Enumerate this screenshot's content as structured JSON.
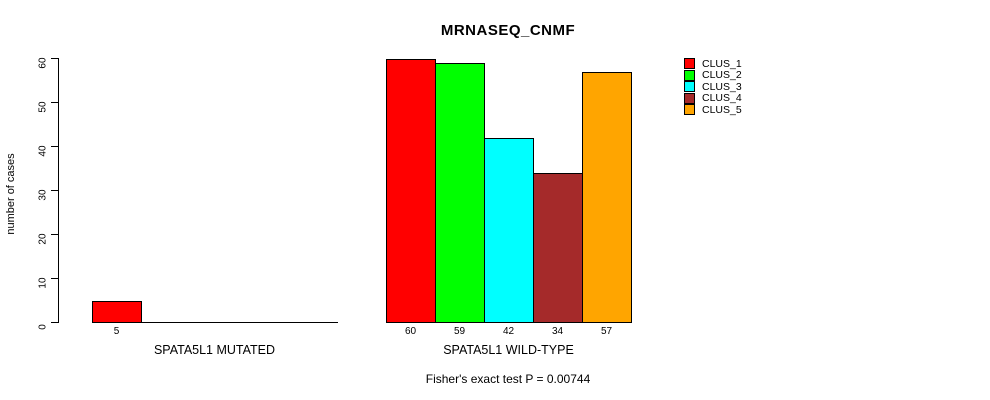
{
  "chart_data": {
    "type": "bar",
    "title": "MRNASEQ_CNMF",
    "ylabel": "number of cases",
    "ylim": [
      0,
      60
    ],
    "yticks": [
      0,
      10,
      20,
      30,
      40,
      50,
      60
    ],
    "grid": false,
    "legend_position": "right",
    "categories": [
      "SPATA5L1 MUTATED",
      "SPATA5L1 WILD-TYPE"
    ],
    "series": [
      {
        "name": "CLUS_1",
        "color": "#ff0000",
        "values": [
          5,
          60
        ]
      },
      {
        "name": "CLUS_2",
        "color": "#00ff00",
        "values": [
          0,
          59
        ]
      },
      {
        "name": "CLUS_3",
        "color": "#00ffff",
        "values": [
          0,
          42
        ]
      },
      {
        "name": "CLUS_4",
        "color": "#a52a2a",
        "values": [
          0,
          34
        ]
      },
      {
        "name": "CLUS_5",
        "color": "#ffa500",
        "values": [
          0,
          57
        ]
      }
    ],
    "groups": [
      {
        "label": "SPATA5L1 MUTATED",
        "values": [
          5,
          0,
          0,
          0,
          0
        ]
      },
      {
        "label": "SPATA5L1 WILD-TYPE",
        "values": [
          60,
          59,
          42,
          34,
          57
        ]
      }
    ],
    "bar_value_labels_shown_for_nonzero_only": true,
    "annotation": "Fisher's exact test P = 0.00744"
  },
  "legend": {
    "items": [
      {
        "label": "CLUS_1",
        "color": "#ff0000"
      },
      {
        "label": "CLUS_2",
        "color": "#00ff00"
      },
      {
        "label": "CLUS_3",
        "color": "#00ffff"
      },
      {
        "label": "CLUS_4",
        "color": "#a52a2a"
      },
      {
        "label": "CLUS_5",
        "color": "#ffa500"
      }
    ]
  },
  "colors": {
    "axis": "#000000",
    "bar_border": "#000000",
    "background": "#ffffff"
  }
}
